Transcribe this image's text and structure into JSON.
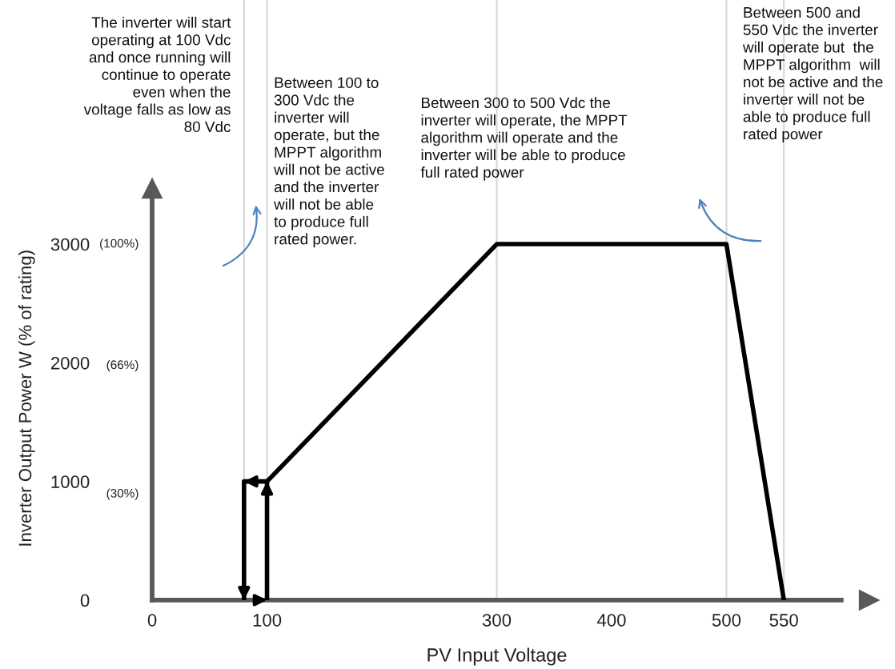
{
  "chart_data": {
    "type": "line",
    "xlabel": "PV Input Voltage",
    "ylabel": "Inverter Output Power W (% of rating)",
    "xlim": [
      0,
      600
    ],
    "ylim": [
      0,
      3400
    ],
    "y2lim": [
      0,
      113
    ],
    "xticks": [
      0,
      100,
      300,
      400,
      500,
      550
    ],
    "yticks": [
      0,
      1000,
      2000,
      3000
    ],
    "y2ticks": [
      {
        "value": 30,
        "label": "(30%)"
      },
      {
        "value": 66,
        "label": "(66%)"
      },
      {
        "value": 100,
        "label": "(100%)"
      }
    ],
    "grid": false,
    "legend": false,
    "marker": "none",
    "line_style": "solid",
    "series": [
      {
        "color": "#000000",
        "x": [
          100,
          300,
          500,
          550
        ],
        "values": [
          1000,
          3000,
          3000,
          0
        ]
      },
      {
        "color": "#000000",
        "x": [
          100,
          100,
          80,
          80
        ],
        "values": [
          0,
          1000,
          1000,
          0
        ]
      }
    ],
    "ref_lines": [
      {
        "axis": "x",
        "value": 80,
        "color": "#d9d9d9"
      },
      {
        "axis": "x",
        "value": 100,
        "color": "#d9d9d9"
      },
      {
        "axis": "x",
        "value": 300,
        "color": "#d9d9d9"
      },
      {
        "axis": "x",
        "value": 500,
        "color": "#d9d9d9"
      },
      {
        "axis": "x",
        "value": 550,
        "color": "#d9d9d9"
      }
    ],
    "annotations": [
      "The inverter will start\noperating at 100 Vdc\nand once running will\ncontinue to operate\neven when the\nvoltage falls as low as\n80 Vdc",
      "Between 100 to\n300 Vdc the\ninverter will\noperate, but the\nMPPT algorithm\nwill not be active\nand the inverter\nwill not be able\nto produce full\nrated power.",
      "Between 300 to 500 Vdc the\ninverter will operate, the MPPT\nalgorithm will operate and the\ninverter will be able to produce\nfull rated power",
      "Between 500 and\n550 Vdc the inverter\nwill operate but  the\nMPPT algorithm  will\nnot be active and the\ninverter will not be\nable to produce full\nrated power"
    ]
  }
}
